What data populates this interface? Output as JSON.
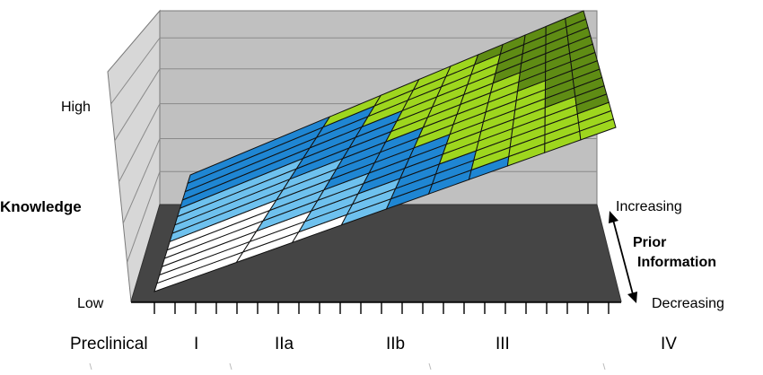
{
  "chart_data": {
    "type": "surface",
    "title": "",
    "z_axis": {
      "label": "Knowledge",
      "ticks": [
        "Low",
        "High"
      ]
    },
    "y_axis": {
      "label": "Prior Information",
      "ticks": [
        "Decreasing",
        "Increasing"
      ]
    },
    "x_axis": {
      "label": "",
      "categories": [
        "Preclinical",
        "I",
        "IIa",
        "IIb",
        "III",
        "IV"
      ]
    },
    "grid": true,
    "surface_grid": {
      "columns": 10,
      "rows": 14
    },
    "color_bands": [
      {
        "band": "low",
        "color": "#ffffff"
      },
      {
        "band": "low-mid",
        "color": "#6ec1ee"
      },
      {
        "band": "mid",
        "color": "#1f86d3"
      },
      {
        "band": "mid-high",
        "color": "#9ed61e"
      },
      {
        "band": "high",
        "color": "#5f8c14"
      }
    ],
    "colors": {
      "walls": "#c0c0c0",
      "floor": "#454545"
    }
  }
}
